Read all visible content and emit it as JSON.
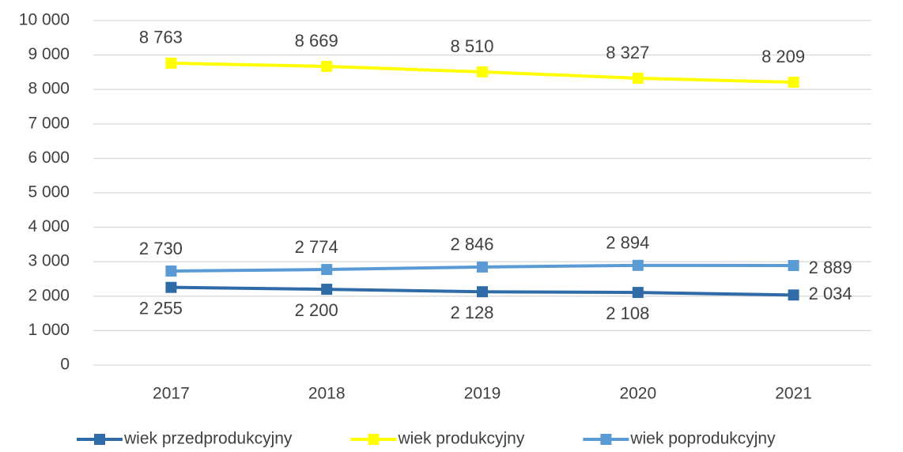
{
  "chart_data": {
    "type": "line",
    "categories": [
      "2017",
      "2018",
      "2019",
      "2020",
      "2021"
    ],
    "series": [
      {
        "name": "wiek przedprodukcyjny",
        "color": "#2f6ba6",
        "values": [
          2255,
          2200,
          2128,
          2108,
          2034
        ],
        "value_labels": [
          "2 255",
          "2 200",
          "2 128",
          "2 108",
          "2 034"
        ]
      },
      {
        "name": "wiek produkcyjny",
        "color": "#ffff00",
        "values": [
          8763,
          8669,
          8510,
          8327,
          8209
        ],
        "value_labels": [
          "8 763",
          "8 669",
          "8 510",
          "8 327",
          "8 209"
        ]
      },
      {
        "name": "wiek poprodukcyjny",
        "color": "#5b9bd5",
        "values": [
          2730,
          2774,
          2846,
          2894,
          2889
        ],
        "value_labels": [
          "2 730",
          "2 774",
          "2 846",
          "2 894",
          "2 889"
        ]
      }
    ],
    "ylim": [
      0,
      10000
    ],
    "yticks": [
      0,
      {
        "value": 1000,
        "label": "1 000"
      },
      {
        "value": 2000,
        "label": "2 000"
      },
      {
        "value": 3000,
        "label": "3 000"
      },
      {
        "value": 4000,
        "label": "4 000"
      },
      {
        "value": 5000,
        "label": "5 000"
      },
      {
        "value": 6000,
        "label": "6 000"
      },
      {
        "value": 7000,
        "label": "7 000"
      },
      {
        "value": 8000,
        "label": "8 000"
      },
      {
        "value": 9000,
        "label": "9 000"
      },
      {
        "value": 10000,
        "label": "10 000"
      }
    ],
    "grid": true,
    "legend": "bottom"
  }
}
